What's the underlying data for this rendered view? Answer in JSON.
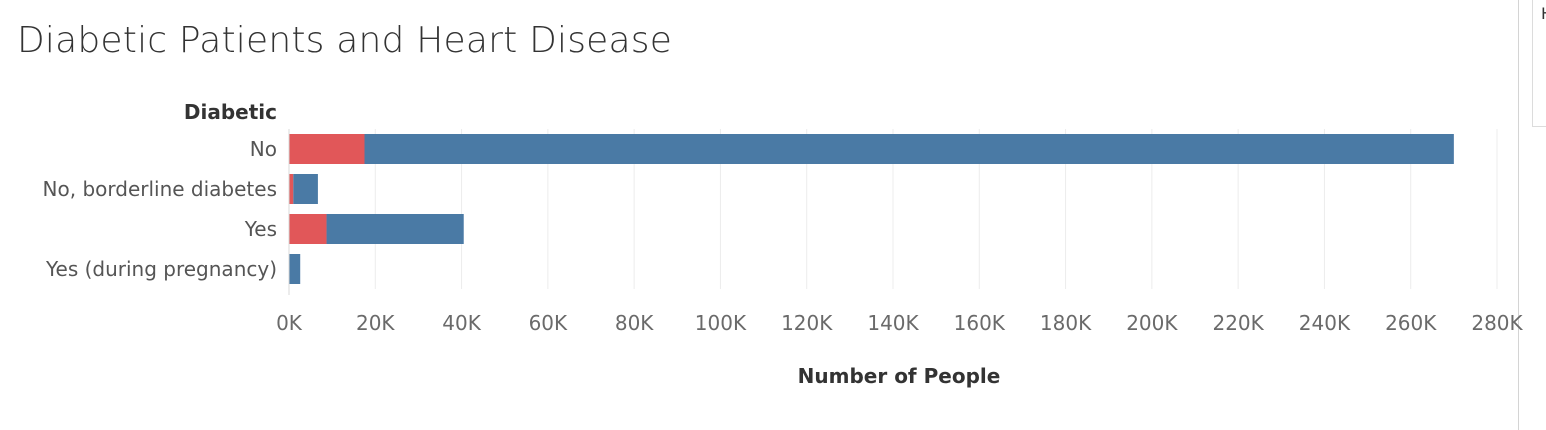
{
  "chart_data": {
    "type": "bar",
    "orientation": "horizontal",
    "stacked": true,
    "title": "Diabetic Patients and Heart Disease",
    "row_field_label": "Diabetic",
    "categories": [
      "No",
      "No, borderline diabetes",
      "Yes",
      "Yes (during pregnancy)"
    ],
    "series": [
      {
        "color": "#e15759",
        "values": [
          17500,
          1000,
          8700,
          0
        ]
      },
      {
        "color": "#4a7aa5",
        "values": [
          252500,
          5700,
          31800,
          2600
        ]
      }
    ],
    "xlabel": "Number of People",
    "xlim": [
      0,
      280000
    ],
    "x_ticks": [
      0,
      20000,
      40000,
      60000,
      80000,
      100000,
      120000,
      140000,
      160000,
      180000,
      200000,
      220000,
      240000,
      260000,
      280000
    ],
    "x_tick_labels": [
      "0K",
      "20K",
      "40K",
      "60K",
      "80K",
      "100K",
      "120K",
      "140K",
      "160K",
      "180K",
      "200K",
      "220K",
      "240K",
      "260K",
      "280K"
    ],
    "grid": true,
    "legend": "none"
  },
  "side_panel": {
    "partial_text": "H"
  }
}
